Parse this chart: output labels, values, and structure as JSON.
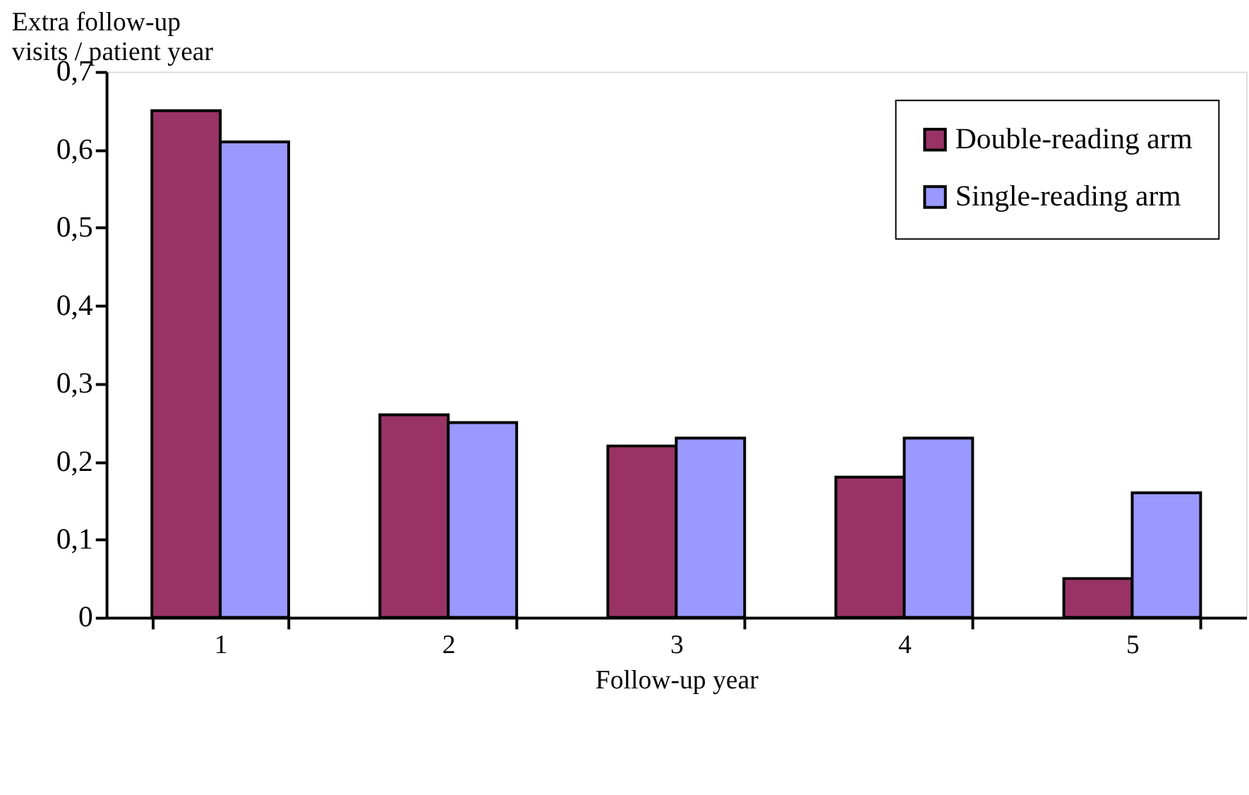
{
  "chart_data": {
    "type": "bar",
    "categories": [
      "1",
      "2",
      "3",
      "4",
      "5"
    ],
    "series": [
      {
        "name": "Double-reading arm",
        "color": "#993366",
        "values": [
          0.65,
          0.26,
          0.22,
          0.18,
          0.05
        ]
      },
      {
        "name": "Single-reading arm",
        "color": "#9999ff",
        "values": [
          0.61,
          0.25,
          0.23,
          0.23,
          0.16
        ]
      }
    ],
    "xlabel": "Follow-up year",
    "ylabel": "Extra follow-up\nvisits / patient year",
    "ylim": [
      0,
      0.7
    ],
    "yticks": [
      0,
      {
        "value": 0.1,
        "label": "0,1"
      },
      {
        "value": 0.2,
        "label": "0,2"
      },
      {
        "value": 0.3,
        "label": "0,3"
      },
      {
        "value": 0.4,
        "label": "0,4"
      },
      {
        "value": 0.5,
        "label": "0,5"
      },
      {
        "value": 0.6,
        "label": "0,6"
      },
      {
        "value": 0.7,
        "label": "0,7"
      }
    ],
    "grid": false,
    "legend": "top right"
  }
}
